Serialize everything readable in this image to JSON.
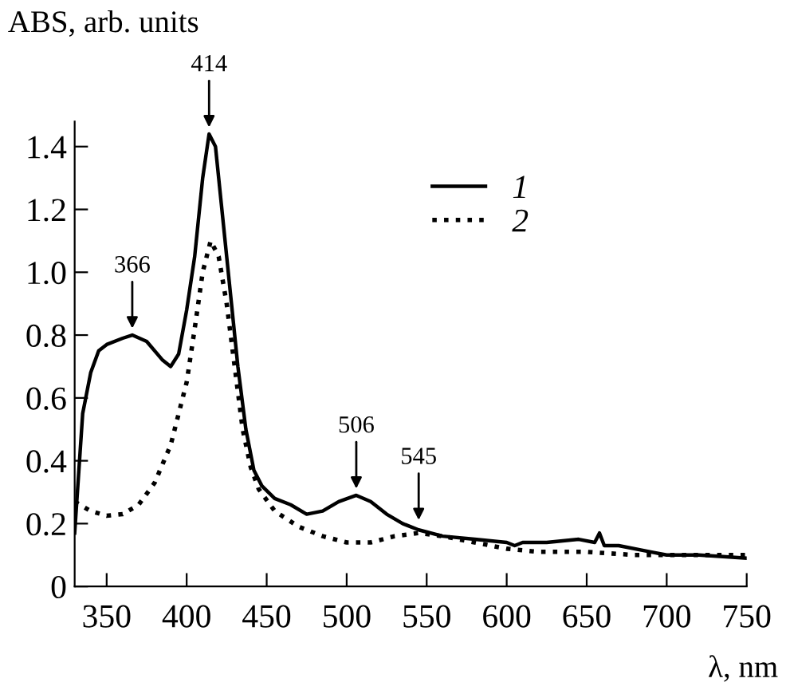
{
  "chart_data": {
    "type": "line",
    "xlabel": "λ, nm",
    "ylabel": "ABS, arb. units",
    "xlim": [
      330,
      750
    ],
    "ylim": [
      0,
      1.48
    ],
    "xticks": [
      350,
      400,
      450,
      500,
      550,
      600,
      650,
      700,
      750
    ],
    "yticks": [
      0,
      0.2,
      0.4,
      0.6,
      0.8,
      {
        "value": 1,
        "label": "1.0"
      },
      1.2,
      1.4
    ],
    "grid": false,
    "legend": "top right",
    "series": [
      {
        "name": "1",
        "color": "#000000",
        "line_style": "solid",
        "x": [
          330,
          335,
          340,
          345,
          350,
          360,
          366,
          375,
          385,
          390,
          395,
          400,
          405,
          410,
          414,
          418,
          422,
          427,
          432,
          437,
          442,
          447,
          455,
          465,
          475,
          485,
          495,
          506,
          515,
          525,
          535,
          545,
          560,
          580,
          600,
          605,
          610,
          625,
          645,
          655,
          658,
          661,
          670,
          690,
          700,
          720,
          750
        ],
        "values": [
          0.17,
          0.55,
          0.68,
          0.75,
          0.77,
          0.79,
          0.8,
          0.78,
          0.72,
          0.7,
          0.74,
          0.88,
          1.05,
          1.3,
          1.44,
          1.4,
          1.2,
          0.95,
          0.7,
          0.5,
          0.37,
          0.32,
          0.28,
          0.26,
          0.23,
          0.24,
          0.27,
          0.29,
          0.27,
          0.23,
          0.2,
          0.18,
          0.16,
          0.15,
          0.14,
          0.13,
          0.14,
          0.14,
          0.15,
          0.14,
          0.17,
          0.13,
          0.13,
          0.11,
          0.1,
          0.1,
          0.09
        ]
      },
      {
        "name": "2",
        "color": "#000000",
        "line_style": "dotted",
        "x": [
          330,
          340,
          350,
          360,
          370,
          380,
          390,
          400,
          405,
          410,
          415,
          420,
          425,
          430,
          435,
          440,
          445,
          455,
          470,
          485,
          500,
          515,
          530,
          545,
          560,
          580,
          600,
          620,
          650,
          680,
          700,
          750
        ],
        "values": [
          0.27,
          0.24,
          0.225,
          0.23,
          0.26,
          0.33,
          0.45,
          0.65,
          0.82,
          1.0,
          1.1,
          1.05,
          0.9,
          0.7,
          0.5,
          0.38,
          0.31,
          0.24,
          0.19,
          0.16,
          0.14,
          0.14,
          0.16,
          0.17,
          0.16,
          0.14,
          0.12,
          0.11,
          0.11,
          0.1,
          0.1,
          0.1
        ]
      }
    ],
    "annotations": [
      {
        "text": "366",
        "x": 366,
        "y": 0.8
      },
      {
        "text": "414",
        "x": 414,
        "y": 1.44
      },
      {
        "text": "506",
        "x": 506,
        "y": 0.29
      },
      {
        "text": "545",
        "x": 545,
        "y": 0.19
      }
    ]
  }
}
